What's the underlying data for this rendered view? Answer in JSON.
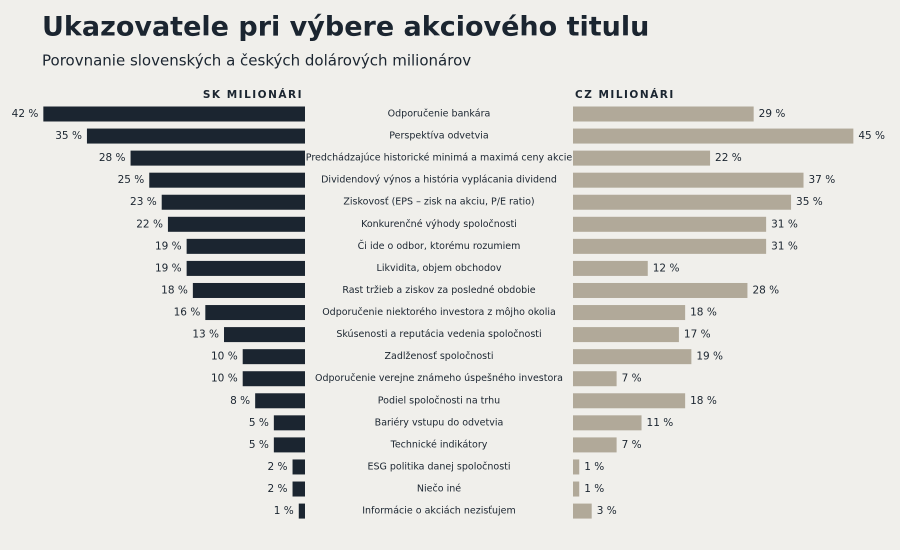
{
  "chart_data": {
    "type": "bar",
    "title": "Ukazovatele pri výbere akciového titulu",
    "subtitle": "Porovnanie slovenských a českých dolárových milionárov",
    "categories": [
      "Odporučenie bankára",
      "Perspektíva odvetvia",
      "Predchádzajúce historické minimá a maximá ceny akcie",
      "Dividendový výnos a história vyplácania dividend",
      "Ziskovosť (EPS – zisk na akciu, P/E ratio)",
      "Konkurenčné výhody spoločnosti",
      "Či ide o odbor, ktorému rozumiem",
      "Likvidita, objem obchodov",
      "Rast tržieb a ziskov za posledné obdobie",
      "Odporučenie niektorého investora z môjho okolia",
      "Skúsenosti a reputácia vedenia spoločnosti",
      "Zadlženosť spoločnosti",
      "Odporučenie verejne známeho úspešného investora",
      "Podiel spoločnosti na trhu",
      "Bariéry vstupu do odvetvia",
      "Technické indikátory",
      "ESG politika danej spoločnosti",
      "Niečo iné",
      "Informácie o akciách nezisťujem"
    ],
    "series": [
      {
        "name": "SK MILIONÁRI",
        "color": "#1b2530",
        "values": [
          42,
          35,
          28,
          25,
          23,
          22,
          19,
          19,
          18,
          16,
          13,
          10,
          10,
          8,
          5,
          5,
          2,
          2,
          1
        ],
        "value_labels": [
          "42 %",
          "35 %",
          "28 %",
          "25 %",
          "23 %",
          "22 %",
          "19 %",
          "19 %",
          "18 %",
          "16 %",
          "13 %",
          "10 %",
          "10 %",
          "8 %",
          "5 %",
          "5 %",
          "2 %",
          "2 %",
          "1 %"
        ]
      },
      {
        "name": "CZ MILIONÁRI",
        "color": "#b1a999",
        "values": [
          29,
          45,
          22,
          37,
          35,
          31,
          31,
          12,
          28,
          18,
          17,
          19,
          7,
          18,
          11,
          7,
          1,
          1,
          3
        ],
        "value_labels": [
          "29 %",
          "45 %",
          "22 %",
          "37 %",
          "35 %",
          "31 %",
          "31 %",
          "12 %",
          "28 %",
          "18 %",
          "17 %",
          "19 %",
          "7 %",
          "18 %",
          "11 %",
          "7 %",
          "1 %",
          "1 %",
          "3 %"
        ]
      }
    ]
  }
}
